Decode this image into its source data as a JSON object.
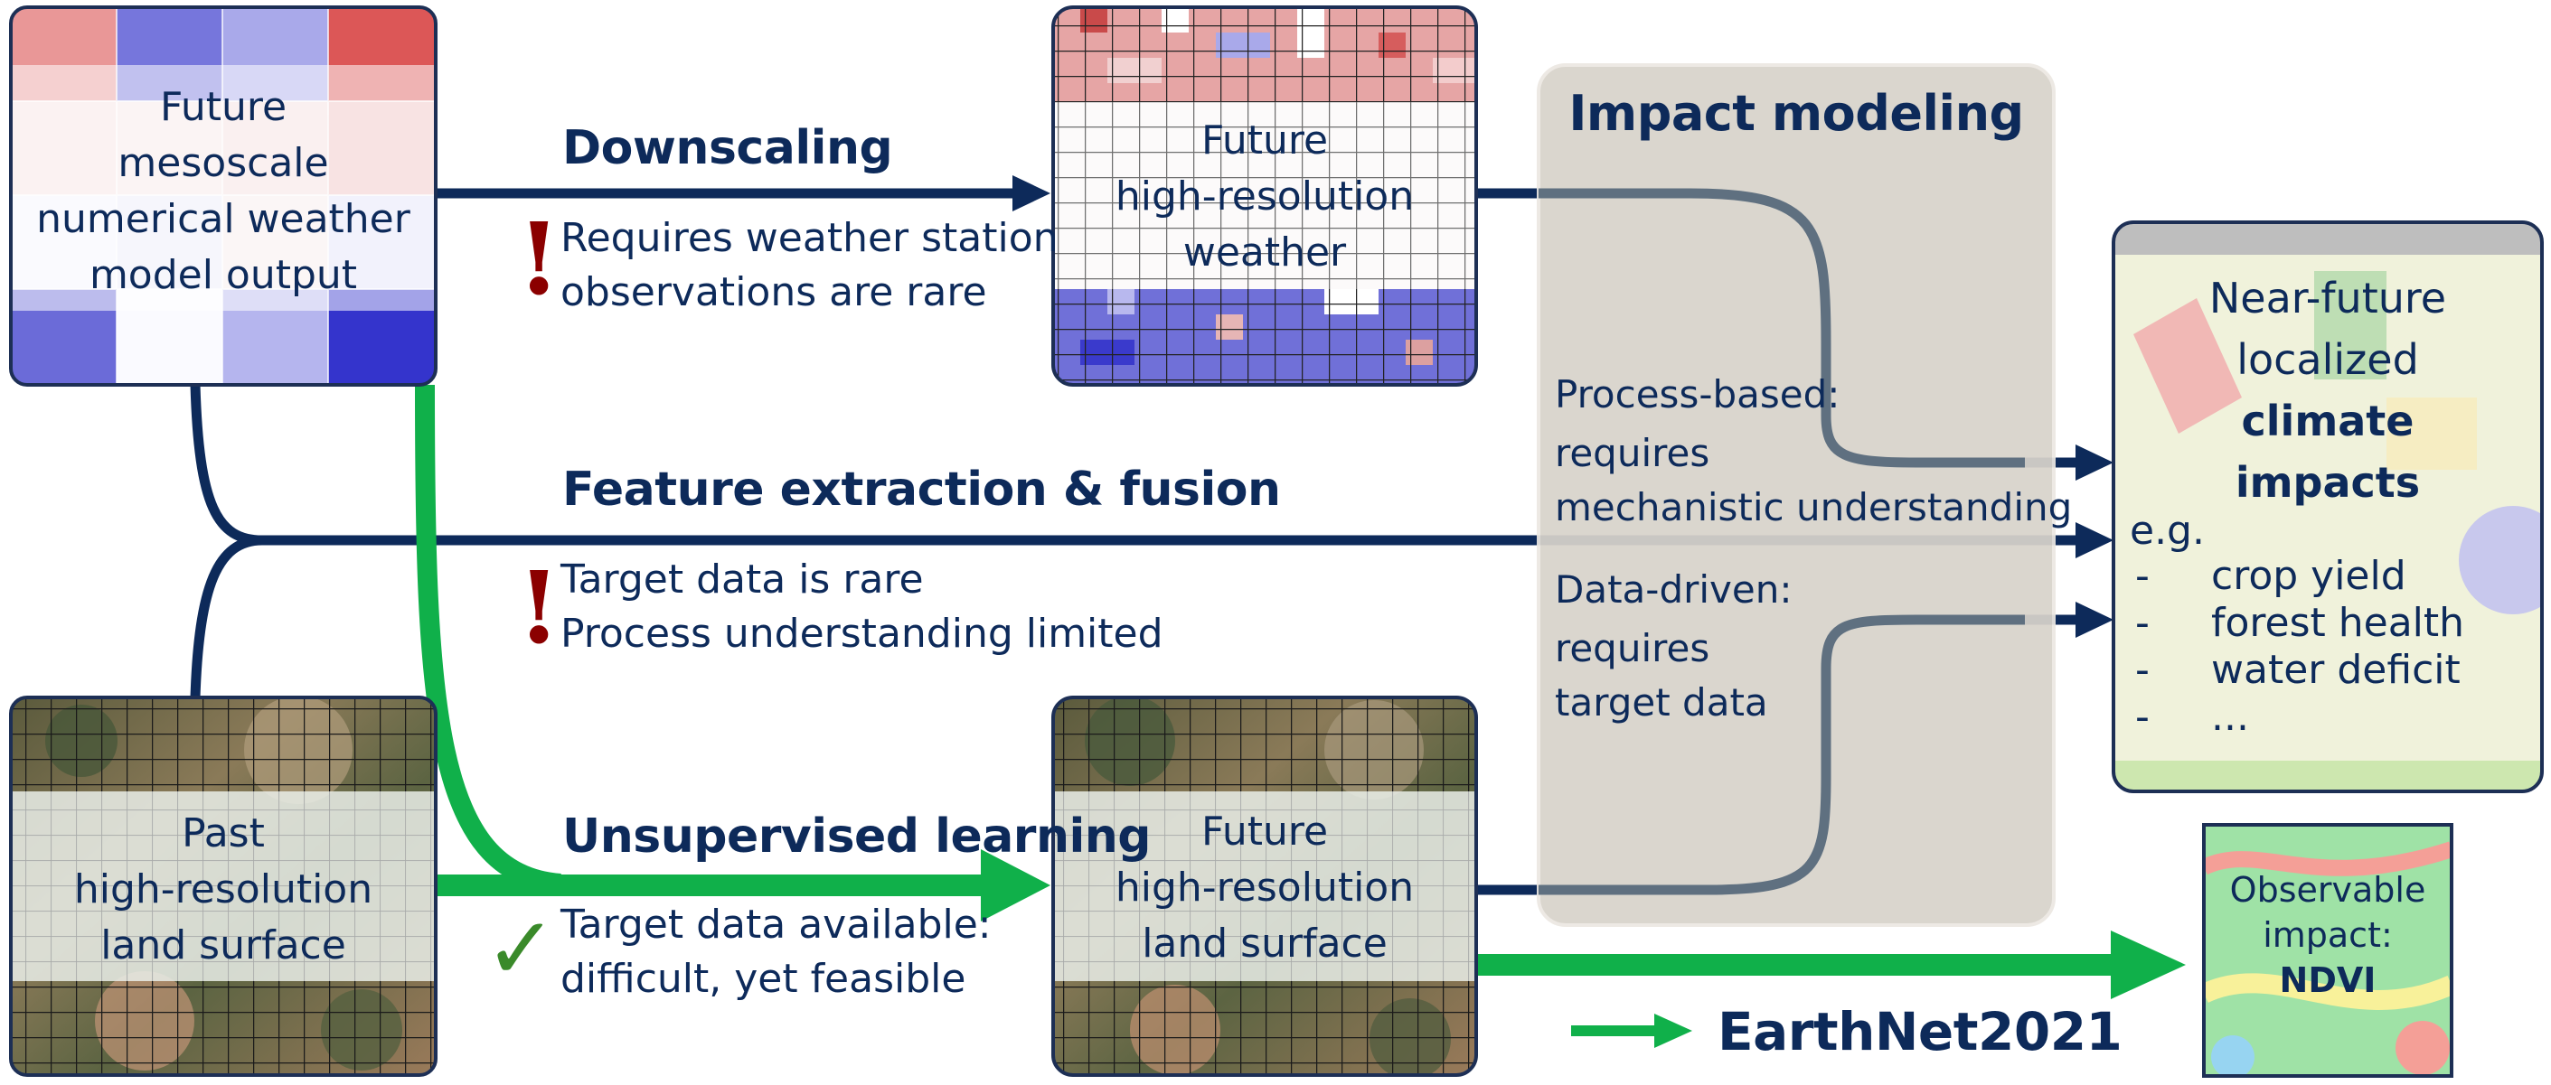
{
  "boxes": {
    "mesoscale": {
      "lines": [
        "Future",
        "mesoscale",
        "numerical weather",
        "model output"
      ]
    },
    "hires_weather": {
      "lines": [
        "Future",
        "high-resolution",
        "weather"
      ]
    },
    "past_land": {
      "lines": [
        "Past",
        "high-resolution",
        "land surface"
      ]
    },
    "future_land": {
      "lines": [
        "Future",
        "high-resolution",
        "land surface"
      ]
    },
    "impact_modeling": {
      "title": "Impact modeling",
      "process_label": "Process-based:",
      "process_lines": [
        "requires",
        "mechanistic understanding"
      ],
      "data_label": "Data-driven:",
      "data_lines": [
        "requires",
        "target data"
      ]
    },
    "climate_impacts": {
      "line1": "Near-future",
      "line2": "localized",
      "bold1": "climate",
      "bold2": "impacts",
      "eg": "e.g.",
      "items": [
        {
          "dash": "-",
          "text": "crop yield"
        },
        {
          "dash": "-",
          "text": "forest health"
        },
        {
          "dash": "-",
          "text": "water deficit"
        },
        {
          "dash": "-",
          "text": "..."
        }
      ]
    },
    "observable": {
      "line1": "Observable",
      "line2": "impact:",
      "bold": "NDVI"
    }
  },
  "paths": {
    "downscaling": {
      "title": "Downscaling",
      "mark": "!",
      "notes": [
        "Requires weather station",
        "observations are rare"
      ]
    },
    "fusion": {
      "title": "Feature extraction & fusion",
      "mark": "!",
      "notes": [
        "Target data is rare",
        "Process understanding limited"
      ]
    },
    "unsupervised": {
      "title": "Unsupervised learning",
      "mark": "✓",
      "notes": [
        "Target data available:",
        "difficult, yet feasible"
      ]
    }
  },
  "legend": {
    "label": "EarthNet2021"
  },
  "colors": {
    "navy": "#0d2a5a",
    "green": "#10b04a",
    "grey_path": "#5f7080",
    "warning": "#8b0000",
    "check": "#3a8a2a",
    "impact_panel": "#d8d3cb",
    "card_border": "#1d2f55"
  }
}
